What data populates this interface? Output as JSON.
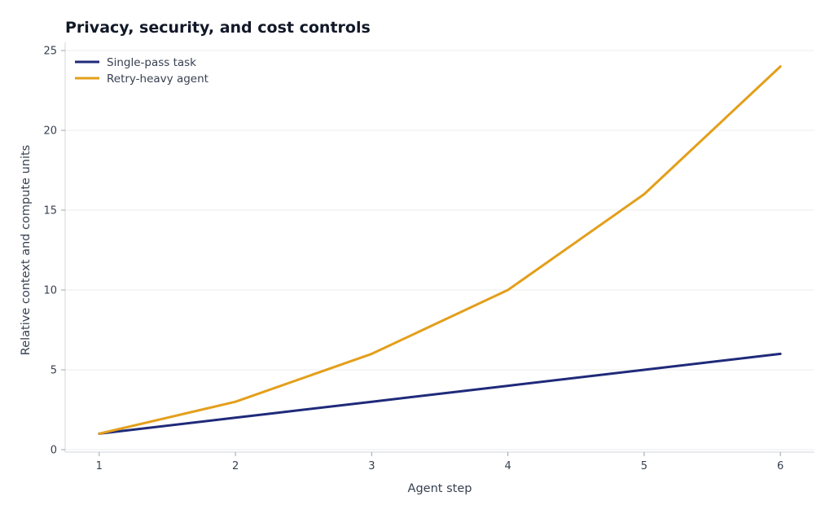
{
  "chart_data": {
    "type": "line",
    "title": "Privacy, security, and cost controls",
    "xlabel": "Agent step",
    "ylabel": "Relative context and compute units",
    "x": [
      1,
      2,
      3,
      4,
      5,
      6
    ],
    "xticks": [
      "1",
      "2",
      "3",
      "4",
      "5",
      "6"
    ],
    "yticks": [
      "0",
      "5",
      "10",
      "15",
      "20",
      "25"
    ],
    "xlim": [
      0.75,
      6.25
    ],
    "ylim": [
      0,
      25
    ],
    "grid": true,
    "legend_position": "top-left",
    "series": [
      {
        "name": "Single-pass task",
        "color": "#1f2a7a",
        "values": [
          1,
          2,
          3,
          4,
          5,
          6
        ]
      },
      {
        "name": "Retry-heavy agent",
        "color": "#e39f1b",
        "values": [
          1,
          3,
          6,
          10,
          16,
          24
        ]
      }
    ]
  }
}
